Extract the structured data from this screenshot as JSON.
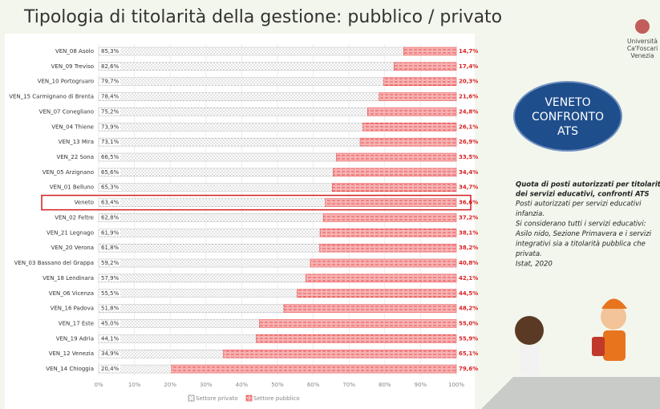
{
  "slide": {
    "title": "Tipologia di titolarità della gestione: pubblico / privato",
    "logo": [
      "Università",
      "Ca'Foscari",
      "Venezia"
    ],
    "badge": [
      "VENETO",
      "CONFRONTO",
      "ATS"
    ],
    "note_title": [
      "Quota di posti autorizzati per titolarità",
      "dei servizi educativi, confronti ATS"
    ],
    "note": [
      "Posti autorizzati per servizi educativi",
      "infanzia.",
      "Si considerano tutti i servizi educativi:",
      "Asilo nido, Sezione Primavera e i servizi",
      "integrativi sia a titolarità pubblica che",
      "privata.",
      "Istat, 2020"
    ]
  },
  "chart_data": {
    "type": "stacked_barh",
    "categories": [
      "VEN_08 Asolo",
      "VEN_09 Treviso",
      "VEN_10 Portogruaro",
      "VEN_15 Carmignano di Brenta",
      "VEN_07 Conegliano",
      "VEN_04 Thiene",
      "VEN_13 Mira",
      "VEN_22 Sona",
      "VEN_05 Arzignano",
      "VEN_01 Belluno",
      "Veneto",
      "VEN_02 Feltre",
      "VEN_21 Legnago",
      "VEN_20 Verona",
      "VEN_03 Bassano del Grappa",
      "VEN_18 Lendinara",
      "VEN_06 Vicenza",
      "VEN_16 Padova",
      "VEN_17 Este",
      "VEN_19 Adria",
      "VEN_12 Venezia",
      "VEN_14 Chioggia"
    ],
    "series": [
      {
        "name": "Settore privato",
        "color": "#9a9a9a",
        "values": [
          85.3,
          82.6,
          79.7,
          78.4,
          75.2,
          73.9,
          73.1,
          66.5,
          65.6,
          65.3,
          63.4,
          62.8,
          61.9,
          61.8,
          59.2,
          57.9,
          55.5,
          51.8,
          45.0,
          44.1,
          34.9,
          20.4
        ],
        "value_labels": [
          "85,3%",
          "82,6%",
          "79,7%",
          "78,4%",
          "75,2%",
          "73,9%",
          "73,1%",
          "66,5%",
          "65,6%",
          "65,3%",
          "63,4%",
          "62,8%",
          "61,9%",
          "61,8%",
          "59,2%",
          "57,9%",
          "55,5%",
          "51,8%",
          "45,0%",
          "44,1%",
          "34,9%",
          "20,4%"
        ]
      },
      {
        "name": "Settore pubblico",
        "color": "#e8393b",
        "values": [
          14.7,
          17.4,
          20.3,
          21.6,
          24.8,
          26.1,
          26.9,
          33.5,
          34.4,
          34.7,
          36.6,
          37.2,
          38.1,
          38.2,
          40.8,
          42.1,
          44.5,
          48.2,
          55.0,
          55.9,
          65.1,
          79.6
        ],
        "value_labels": [
          "14,7%",
          "17,4%",
          "20,3%",
          "21,6%",
          "24,8%",
          "26,1%",
          "26,9%",
          "33,5%",
          "34,4%",
          "34,7%",
          "36,6%",
          "37,2%",
          "38,1%",
          "38,2%",
          "40,8%",
          "42,1%",
          "44,5%",
          "48,2%",
          "55,0%",
          "55,9%",
          "65,1%",
          "79,6%"
        ]
      }
    ],
    "xlim": [
      0,
      100
    ],
    "xticks": [
      {
        "value": 0,
        "label": "0%"
      },
      {
        "value": 10,
        "label": "10%"
      },
      {
        "value": 20,
        "label": "20%"
      },
      {
        "value": 30,
        "label": "30%"
      },
      {
        "value": 40,
        "label": "40%"
      },
      {
        "value": 50,
        "label": "50%"
      },
      {
        "value": 60,
        "label": "60%"
      },
      {
        "value": 70,
        "label": "70%"
      },
      {
        "value": 80,
        "label": "80%"
      },
      {
        "value": 90,
        "label": "90%"
      },
      {
        "value": 100,
        "label": "100%"
      }
    ]
  }
}
